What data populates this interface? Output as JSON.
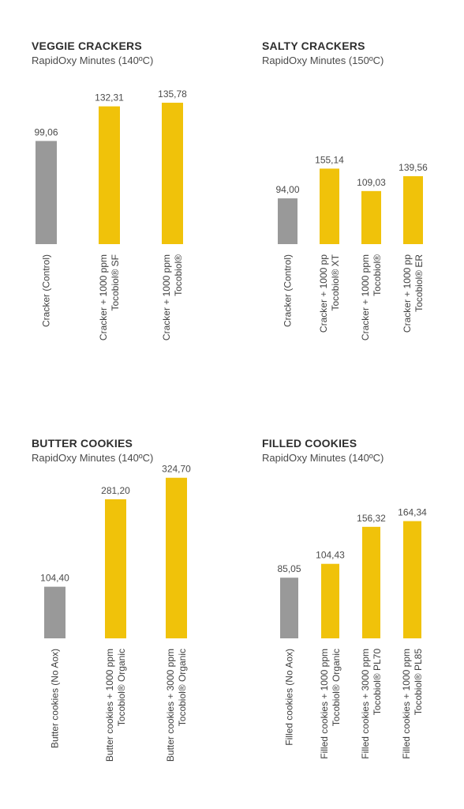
{
  "chart_data": [
    {
      "type": "bar",
      "title": "VEGGIE CRACKERS",
      "subtitle": "RapidOxy Minutes (140ºC)",
      "categories": [
        [
          "Cracker (Control)"
        ],
        [
          "Cracker + 1000 ppm",
          "Tocobiol® SF"
        ],
        [
          "Cracker + 1000 ppm",
          "Tocobiol®"
        ]
      ],
      "values": [
        99.06,
        132.31,
        135.78
      ],
      "value_labels": [
        "99,06",
        "132,31",
        "135,78"
      ],
      "colors": [
        "#999999",
        "#f0c20a",
        "#f0c20a"
      ]
    },
    {
      "type": "bar",
      "title": "SALTY CRACKERS",
      "subtitle": "RapidOxy Minutes (150ºC)",
      "categories": [
        [
          "Cracker (Control)"
        ],
        [
          "Cracker + 1000 pp",
          "Tocobiol® XT"
        ],
        [
          "Cracker + 1000 ppm",
          "Tocobiol®"
        ],
        [
          "Cracker + 1000 pp",
          "Tocobiol® ER"
        ]
      ],
      "values": [
        94.0,
        155.14,
        109.03,
        139.56
      ],
      "value_labels": [
        "94,00",
        "155,14",
        "109,03",
        "139,56"
      ],
      "colors": [
        "#999999",
        "#f0c20a",
        "#f0c20a",
        "#f0c20a"
      ]
    },
    {
      "type": "bar",
      "title": "BUTTER COOKIES",
      "subtitle": "RapidOxy Minutes (140ºC)",
      "categories": [
        [
          "Butter cookies (No Aox)"
        ],
        [
          "Butter cookies + 1000 ppm",
          "Tocobiol® Organic"
        ],
        [
          "Butter cookies + 3000 ppm",
          "Tocobiol® Organic"
        ]
      ],
      "values": [
        104.4,
        281.2,
        324.7
      ],
      "value_labels": [
        "104,40",
        "281,20",
        "324,70"
      ],
      "colors": [
        "#999999",
        "#f0c20a",
        "#f0c20a"
      ]
    },
    {
      "type": "bar",
      "title": "FILLED COOKIES",
      "subtitle": "RapidOxy Minutes (140ºC)",
      "categories": [
        [
          "Filled cookies (No Aox)"
        ],
        [
          "Filled cookies + 1000 ppm",
          "Tocobiol® Organic"
        ],
        [
          "Filled cookies + 3000 ppm",
          "Tocobiol® PL70"
        ],
        [
          "Filled cookies + 1000 ppm",
          "Tocobiol® PL85"
        ]
      ],
      "values": [
        85.05,
        104.43,
        156.32,
        164.34
      ],
      "value_labels": [
        "85,05",
        "104,43",
        "156,32",
        "164,34"
      ],
      "colors": [
        "#999999",
        "#f0c20a",
        "#f0c20a",
        "#f0c20a"
      ]
    }
  ]
}
